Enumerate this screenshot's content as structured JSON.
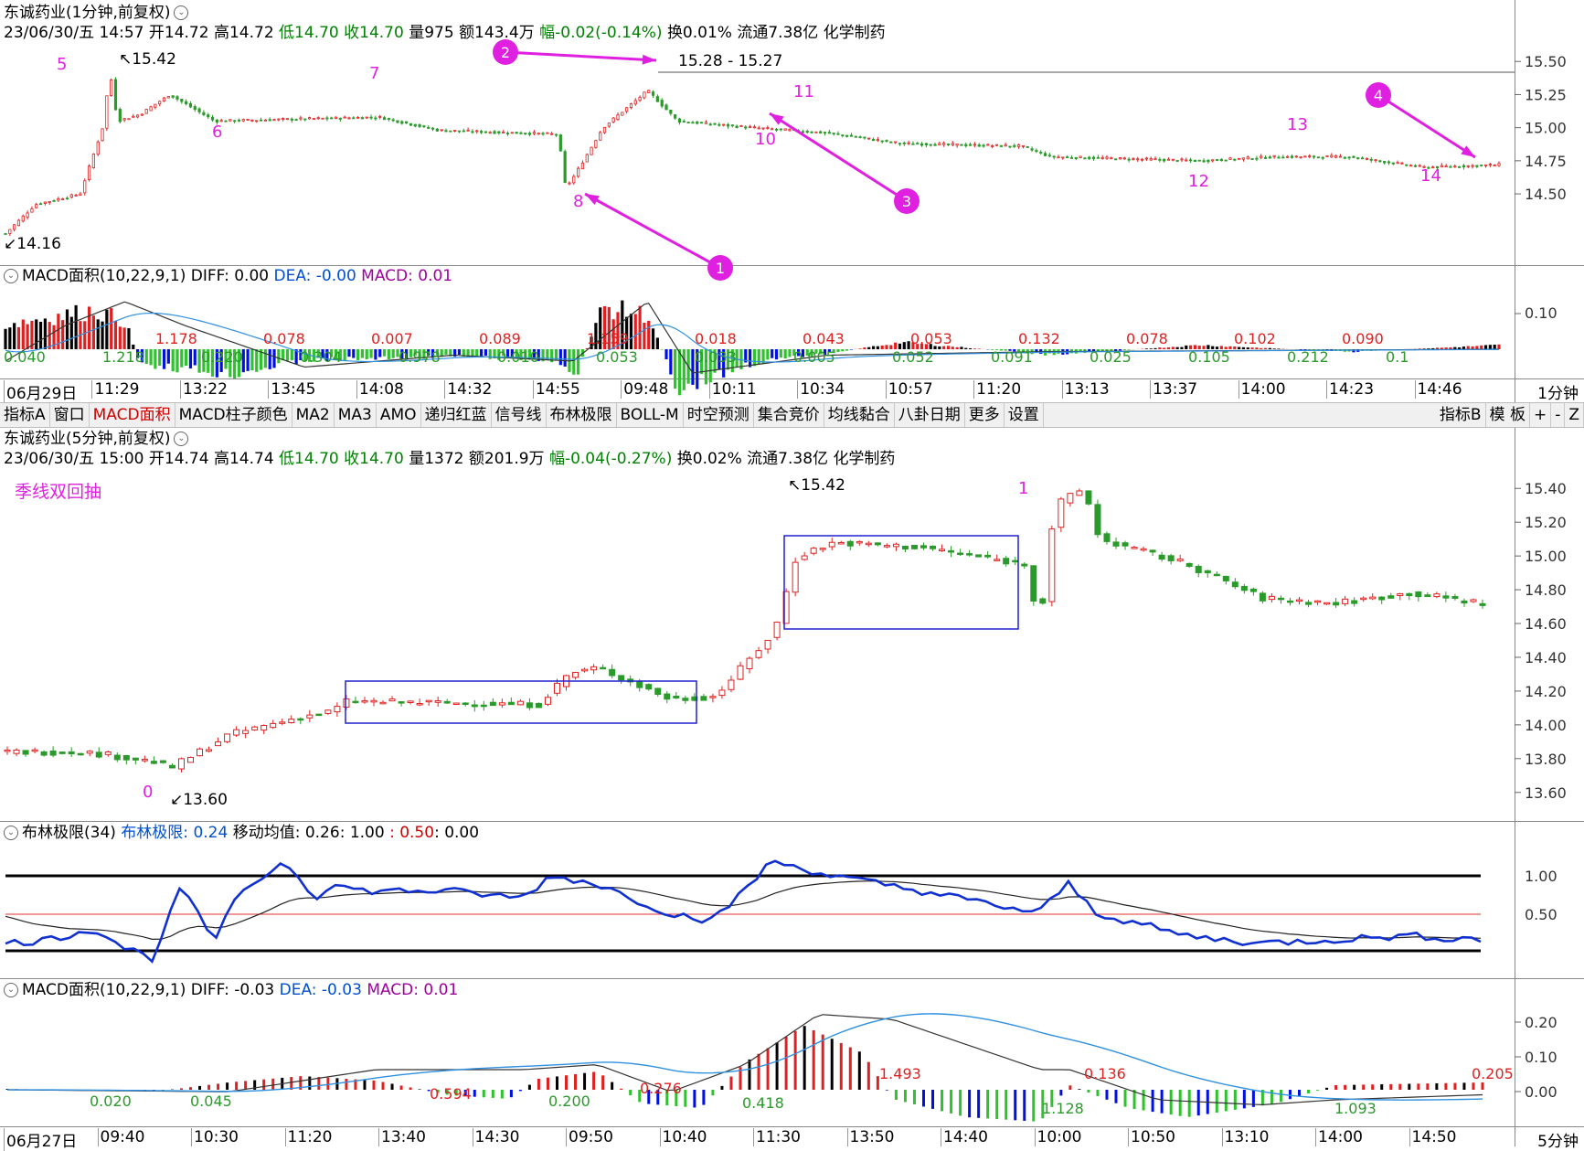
{
  "colors": {
    "up": "#e02020",
    "down": "#2a9a2a",
    "bg": "#ffffff",
    "annotation": "#e020e0",
    "box": "#2020d0"
  },
  "top_chart": {
    "title": "东诚药业(1分钟,前复权)",
    "info": {
      "date": "23/06/30/五 14:57",
      "open": "开14.72",
      "high": "高14.72",
      "low": "低14.70",
      "close": "收14.70",
      "vol": "量975",
      "amt": "额143.4万",
      "chg": "幅-0.02(-0.14%)",
      "turn": "换0.01%",
      "float": "流通7.38亿",
      "industry": "化学制药"
    },
    "price_axis": [
      "15.50",
      "15.25",
      "15.00",
      "14.75",
      "14.50"
    ],
    "high_label": "15.42",
    "low_label": "14.16",
    "range_label": "15.28 - 15.27",
    "marks": [
      "5",
      "6",
      "7",
      "8",
      "10",
      "11",
      "12",
      "13",
      "14"
    ],
    "callouts": [
      "1",
      "2",
      "3",
      "4"
    ]
  },
  "top_macd": {
    "title": "MACD面积(10,22,9,1)",
    "diff": "DIFF: 0.00",
    "dea": "DEA: -0.00",
    "macd": "MACD: 0.01",
    "axis": "0.10",
    "area_labels_red": [
      "1.178",
      "0.078",
      "0.007",
      "0.089",
      "1.159",
      "0.018",
      "0.043",
      "0.053",
      "0.132",
      "0.078",
      "0.102",
      "0.090"
    ],
    "area_labels_green": [
      "0.040",
      "1.218",
      "0.220",
      "0.304",
      "0.978",
      "0.010",
      "0.053",
      "0.033",
      "0.005",
      "0.052",
      "0.091",
      "0.025",
      "0.105",
      "0.212",
      "0.1"
    ]
  },
  "top_time_axis": [
    "06月29日",
    "11:29",
    "13:22",
    "13:45",
    "14:08",
    "14:32",
    "14:55",
    "09:48",
    "10:11",
    "10:34",
    "10:57",
    "11:20",
    "13:13",
    "13:37",
    "14:00",
    "14:23",
    "14:46"
  ],
  "top_period": "1分钟",
  "toolbar": {
    "items": [
      "指标A",
      "窗口",
      "MACD面积",
      "MACD柱子颜色",
      "MA2",
      "MA3",
      "AMO",
      "递归红蓝",
      "信号线",
      "布林极限",
      "BOLL-M",
      "时空预测",
      "集合竞价",
      "均线黏合",
      "八卦日期",
      "更多",
      "设置"
    ],
    "right_items": [
      "指标B",
      "模 板",
      "+",
      "-",
      "Z"
    ]
  },
  "bottom_chart": {
    "title": "东诚药业(5分钟,前复权)",
    "info": {
      "date": "23/06/30/五 15:00",
      "open": "开14.74",
      "high": "高14.74",
      "low": "低14.70",
      "close": "收14.70",
      "vol": "量1372",
      "amt": "额201.9万",
      "chg": "幅-0.04(-0.27%)",
      "turn": "换0.02%",
      "float": "流通7.38亿",
      "industry": "化学制药"
    },
    "annotation": "季线双回抽",
    "price_axis": [
      "15.40",
      "15.20",
      "15.00",
      "14.80",
      "14.60",
      "14.40",
      "14.20",
      "14.00",
      "13.80",
      "13.60"
    ],
    "high_label": "15.42",
    "low_label": "13.60",
    "marks": [
      "0",
      "1"
    ]
  },
  "boll": {
    "title": "布林极限(34)",
    "value": "布林极限: 0.24",
    "ma": "移动均值: 0.26",
    "lvl1": ": 1.00",
    "lvl2": ": 0.50",
    "lvl3": ": 0.00",
    "axis": [
      "1.00",
      "0.50"
    ]
  },
  "bottom_macd": {
    "title": "MACD面积(10,22,9,1)",
    "diff": "DIFF: -0.03",
    "dea": "DEA: -0.03",
    "macd": "MACD: 0.01",
    "axis": [
      "0.20",
      "0.10",
      "0.00"
    ],
    "area_labels_red": [
      "0.594",
      "0.276",
      "1.493",
      "0.136",
      "0.205"
    ],
    "area_labels_green": [
      "0.020",
      "0.045",
      "0.200",
      "0.418",
      "1.128",
      "1.093"
    ]
  },
  "bottom_time_axis": [
    "06月27日",
    "09:40",
    "10:30",
    "11:20",
    "13:40",
    "14:30",
    "09:50",
    "10:40",
    "11:30",
    "13:50",
    "14:40",
    "10:00",
    "10:50",
    "13:10",
    "14:00",
    "14:50"
  ],
  "bottom_period": "5分钟"
}
